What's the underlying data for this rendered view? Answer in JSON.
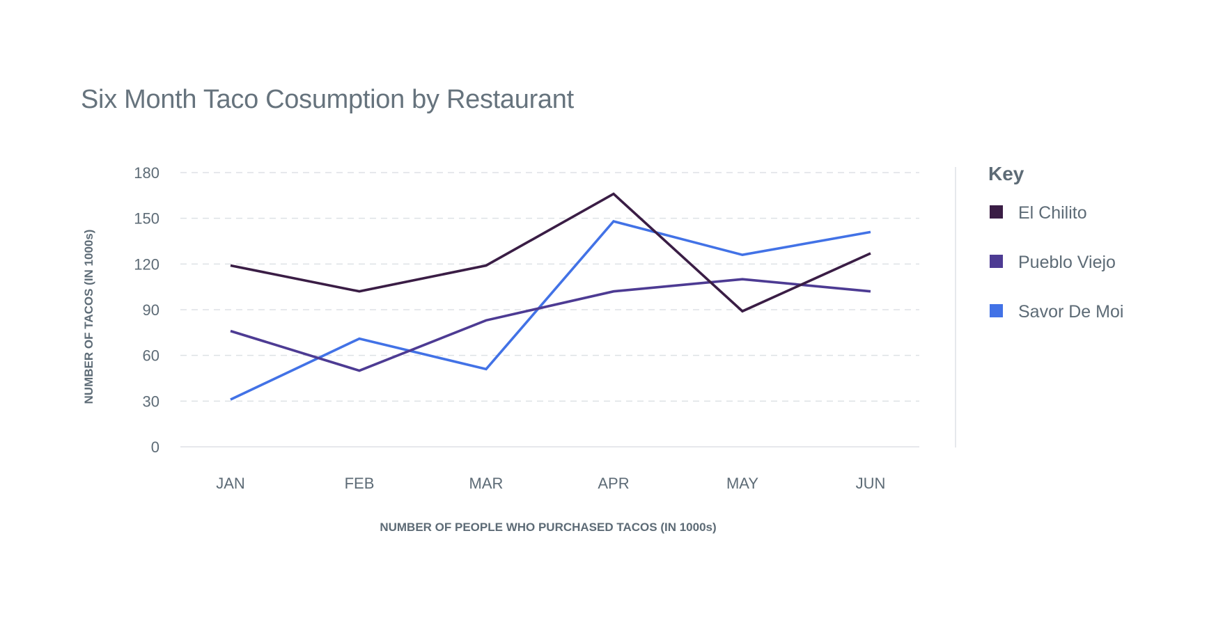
{
  "chart_data": {
    "type": "line",
    "title": "Six Month Taco Cosumption by Restaurant",
    "xlabel": "NUMBER OF PEOPLE WHO PURCHASED TACOS (IN 1000s)",
    "ylabel": "NUMBER OF TACOS (IN 1000s)",
    "categories": [
      "JAN",
      "FEB",
      "MAR",
      "APR",
      "MAY",
      "JUN"
    ],
    "yticks": [
      0,
      30,
      60,
      90,
      120,
      150,
      180
    ],
    "ylim": [
      0,
      180
    ],
    "grid": true,
    "legend": {
      "title": "Key",
      "position": "right"
    },
    "series": [
      {
        "name": "El Chilito",
        "color": "#3a1d45",
        "values": [
          119,
          102,
          119,
          166,
          89,
          127
        ]
      },
      {
        "name": "Pueblo Viejo",
        "color": "#4d3b93",
        "values": [
          76,
          50,
          83,
          102,
          110,
          102
        ]
      },
      {
        "name": "Savor De Moi",
        "color": "#4272e6",
        "values": [
          31,
          71,
          51,
          148,
          126,
          141
        ]
      }
    ]
  }
}
